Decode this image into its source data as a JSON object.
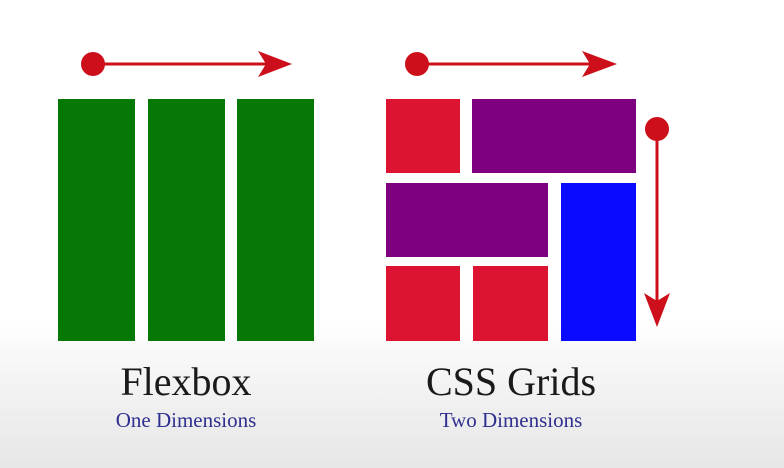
{
  "colors": {
    "flex_green": "#067806",
    "grid_red": "#dc1432",
    "grid_purple": "#7e007e",
    "grid_blue": "#0a0aff",
    "arrow_red": "#cc0f1a",
    "caption_blue": "#2f2f8f"
  },
  "flexbox": {
    "title": "Flexbox",
    "subtitle": "One Dimensions",
    "columns": [
      {
        "color": "green"
      },
      {
        "color": "green"
      },
      {
        "color": "green"
      }
    ],
    "arrow_direction": "horizontal"
  },
  "grids": {
    "title": "CSS Grids",
    "subtitle": "Two Dimensions",
    "cells": [
      {
        "color": "red"
      },
      {
        "color": "purple"
      },
      {
        "color": "purple"
      },
      {
        "color": "blue"
      },
      {
        "color": "red"
      },
      {
        "color": "red"
      }
    ],
    "arrow_directions": [
      "horizontal",
      "vertical"
    ]
  }
}
